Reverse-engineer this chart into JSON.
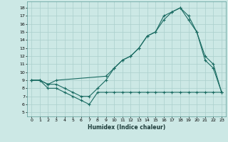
{
  "xlabel": "Humidex (Indice chaleur)",
  "bg_color": "#cce8e5",
  "grid_color": "#aacfcc",
  "line_color": "#1a6b62",
  "xlim": [
    -0.5,
    23.5
  ],
  "ylim": [
    4.5,
    18.8
  ],
  "xticks": [
    0,
    1,
    2,
    3,
    4,
    5,
    6,
    7,
    8,
    9,
    10,
    11,
    12,
    13,
    14,
    15,
    16,
    17,
    18,
    19,
    20,
    21,
    22,
    23
  ],
  "yticks": [
    5,
    6,
    7,
    8,
    9,
    10,
    11,
    12,
    13,
    14,
    15,
    16,
    17,
    18
  ],
  "line1_x": [
    0,
    1,
    2,
    3,
    4,
    5,
    6,
    7,
    8,
    9,
    10,
    11,
    12,
    13,
    14,
    15,
    16,
    17,
    18,
    19,
    20,
    21,
    22,
    23
  ],
  "line1_y": [
    9,
    9,
    8,
    8,
    7.5,
    7,
    6.5,
    6,
    7.5,
    7.5,
    7.5,
    7.5,
    7.5,
    7.5,
    7.5,
    7.5,
    7.5,
    7.5,
    7.5,
    7.5,
    7.5,
    7.5,
    7.5,
    7.5
  ],
  "line2_x": [
    0,
    1,
    2,
    3,
    4,
    5,
    6,
    7,
    8,
    9,
    10,
    11,
    12,
    13,
    14,
    15,
    16,
    17,
    18,
    19,
    20,
    21,
    22,
    23
  ],
  "line2_y": [
    9,
    9,
    8.5,
    8.5,
    8,
    7.5,
    7,
    7,
    8,
    9,
    10.5,
    11.5,
    12,
    13,
    14.5,
    15,
    16.5,
    17.5,
    18,
    16.5,
    15,
    11.5,
    10.5,
    7.5
  ],
  "line3_x": [
    0,
    1,
    2,
    3,
    9,
    10,
    11,
    12,
    13,
    14,
    15,
    16,
    17,
    18,
    19,
    20,
    21,
    22,
    23
  ],
  "line3_y": [
    9,
    9,
    8.5,
    9,
    9.5,
    10.5,
    11.5,
    12,
    13,
    14.5,
    15,
    17,
    17.5,
    18,
    17,
    15,
    12,
    11,
    7.5
  ]
}
